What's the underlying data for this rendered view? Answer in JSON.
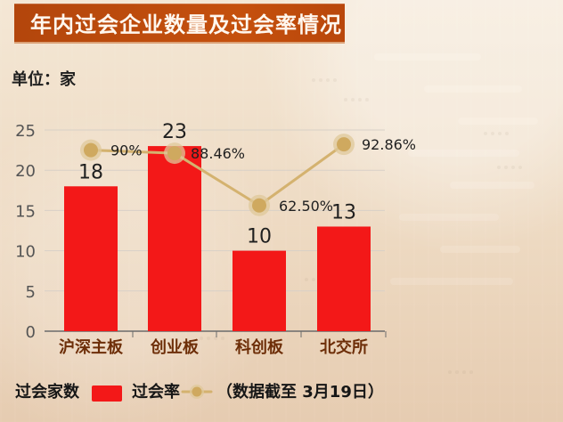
{
  "header": {
    "title": "年内过会企业数量及过会率情况"
  },
  "unit_label": "单位：家",
  "legend": {
    "bars_label": "过会家数",
    "line_label": "过会率",
    "note": "（数据截至 3月19日）"
  },
  "colors": {
    "title_bg": "#c5500d",
    "bar": "#f31818",
    "line": "#d4b26f",
    "marker_fill": "#cfa95f",
    "marker_halo": "#dfc89a",
    "text": "#222222",
    "axis": "#6b6b6b",
    "grid": "#d8d0c7"
  },
  "chart_data": {
    "type": "bar",
    "categories": [
      "沪深主板",
      "创业板",
      "科创板",
      "北交所"
    ],
    "series": [
      {
        "type": "bar",
        "values": [
          18,
          23,
          10,
          13
        ],
        "labels": [
          "18",
          "23",
          "10",
          "13"
        ]
      },
      {
        "type": "line",
        "values": [
          90.0,
          88.46,
          62.5,
          92.86
        ],
        "labels": [
          "90%",
          "88.46%",
          "62.50%",
          "92.86%"
        ]
      }
    ],
    "xlabel": "",
    "ylabel": "",
    "ylim": [
      0,
      25
    ],
    "yticks": [
      "0",
      "5",
      "10",
      "15",
      "20",
      "25"
    ],
    "grid": true
  }
}
